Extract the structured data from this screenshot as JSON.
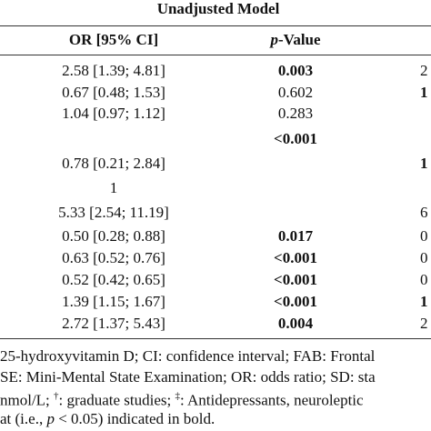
{
  "table": {
    "group_header": "Unadjusted Model",
    "columns": [
      [
        {
          "text": "OR [95% CI]"
        }
      ],
      [
        {
          "text": "p",
          "italic": true
        },
        {
          "text": "-Value"
        }
      ]
    ],
    "rows": [
      [
        {
          "text": "2.58 [1.39; 4.81]"
        },
        {
          "text": "0.003",
          "bold": true
        },
        {
          "text": "2"
        }
      ],
      [
        {
          "text": "0.67 [0.48; 1.53]"
        },
        {
          "text": "0.602"
        },
        {
          "text": "1",
          "bold": true
        }
      ],
      [
        {
          "text": "1.04 [0.97; 1.12]"
        },
        {
          "text": "0.283"
        },
        null
      ],
      [
        null,
        {
          "text": "<0.001",
          "bold": true
        },
        null
      ],
      [
        {
          "text": "0.78 [0.21; 2.84]"
        },
        null,
        {
          "text": "1",
          "bold": true
        }
      ],
      [
        {
          "text": "1"
        },
        null,
        null
      ],
      [
        {
          "text": "5.33 [2.54; 11.19]"
        },
        null,
        {
          "text": "6"
        }
      ],
      [
        {
          "text": "0.50 [0.28; 0.88]"
        },
        {
          "text": "0.017",
          "bold": true
        },
        {
          "text": "0"
        }
      ],
      [
        {
          "text": "0.63 [0.52; 0.76]"
        },
        {
          "text": "<0.001",
          "bold": true
        },
        {
          "text": "0"
        }
      ],
      [
        {
          "text": "0.52 [0.42; 0.65]"
        },
        {
          "text": "<0.001",
          "bold": true
        },
        {
          "text": "0"
        }
      ],
      [
        {
          "text": "1.39 [1.15; 1.67]"
        },
        {
          "text": "<0.001",
          "bold": true
        },
        {
          "text": "1",
          "bold": true
        }
      ],
      [
        {
          "text": "2.72 [1.37; 5.43]"
        },
        {
          "text": "0.004",
          "bold": true
        },
        {
          "text": "2"
        }
      ]
    ]
  },
  "footnote": [
    [
      {
        "text": "25-hydroxyvitamin D; CI: confidence interval; FAB: Frontal"
      }
    ],
    [
      {
        "text": "SE: Mini-Mental State Examination; OR: odds ratio; SD: sta"
      }
    ],
    [
      {
        "text": "nmol/L; "
      },
      {
        "text": "†",
        "sup": true
      },
      {
        "text": ": graduate studies; "
      },
      {
        "text": "‡",
        "sup": true
      },
      {
        "text": ": Antidepressants, neuroleptic"
      }
    ],
    [
      {
        "text": "at (i.e., "
      },
      {
        "text": "p",
        "italic": true
      },
      {
        "text": " < 0.05) indicated in bold."
      }
    ]
  ]
}
